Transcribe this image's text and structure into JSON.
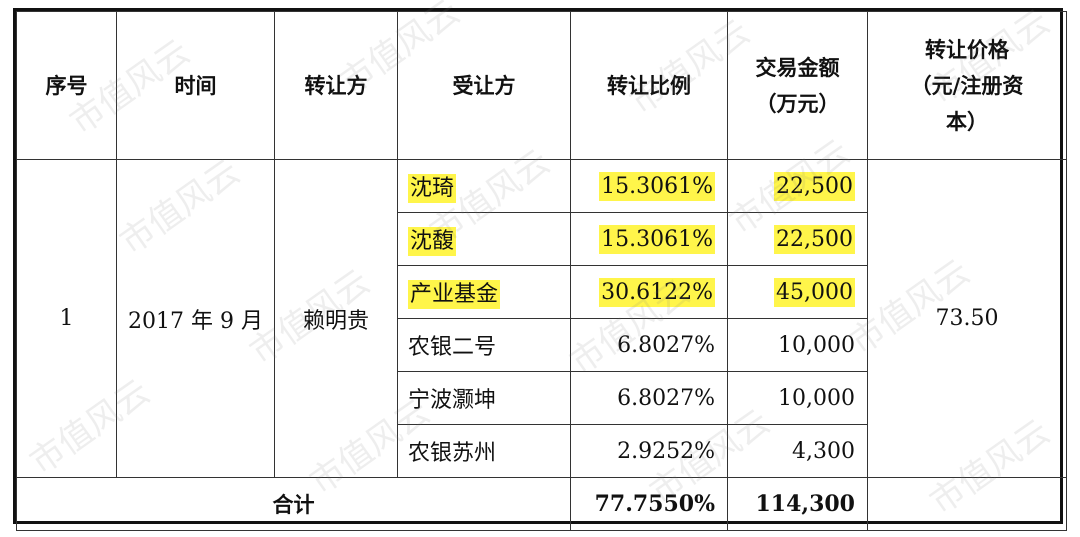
{
  "headers": {
    "seq": "序号",
    "time": "时间",
    "transferor": "转让方",
    "transferee": "受让方",
    "ratio": "转让比例",
    "amount_line1": "交易金额",
    "amount_line2": "（万元）",
    "price_line1": "转让价格",
    "price_line2": "（元/注册资",
    "price_line3": "本）"
  },
  "group": {
    "seq": "1",
    "time": "2017 年 9 月",
    "transferor": "赖明贵",
    "price": "73.50"
  },
  "rows": [
    {
      "transferee": "沈琦",
      "ratio": "15.3061%",
      "amount": "22,500",
      "highlight": true
    },
    {
      "transferee": "沈馥",
      "ratio": "15.3061%",
      "amount": "22,500",
      "highlight": true
    },
    {
      "transferee": "产业基金",
      "ratio": "30.6122%",
      "amount": "45,000",
      "highlight": true
    },
    {
      "transferee": "农银二号",
      "ratio": "6.8027%",
      "amount": "10,000",
      "highlight": false
    },
    {
      "transferee": "宁波灏坤",
      "ratio": "6.8027%",
      "amount": "10,000",
      "highlight": false
    },
    {
      "transferee": "农银苏州",
      "ratio": "2.9252%",
      "amount": "4,300",
      "highlight": false
    }
  ],
  "total": {
    "label": "合计",
    "ratio": "77.7550%",
    "amount": "114,300"
  },
  "watermark": "市值风云",
  "colors": {
    "highlight": "#fff54a"
  }
}
